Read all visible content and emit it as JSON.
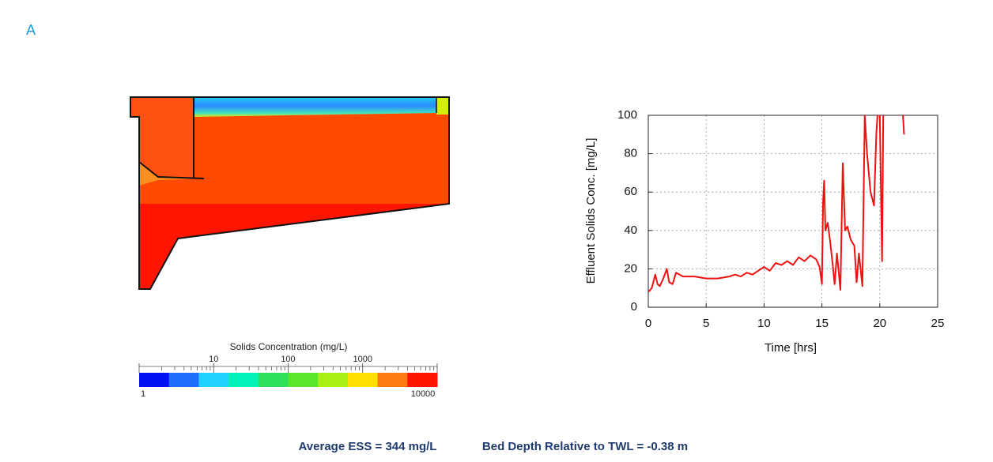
{
  "panel_label": "A",
  "colorbar": {
    "title": "Solids Concentration (mg/L)",
    "lim": [
      1,
      10000
    ],
    "ticks": [
      1,
      10,
      100,
      1000,
      10000
    ],
    "log": true,
    "colors": [
      "#0010f5",
      "#1f6dff",
      "#1fd2ff",
      "#00f2b8",
      "#2ee05a",
      "#5ae62a",
      "#a8f014",
      "#ffe000",
      "#ff7a10",
      "#ff1500"
    ]
  },
  "caption": {
    "ess": "Average ESS = 344 mg/L",
    "bed": "Bed Depth Relative to TWL = -0.38 m"
  },
  "chart_data": {
    "type": "line",
    "x_label": "Time [hrs]",
    "y_label": "Effluent Solids Conc. [mg/L]",
    "color": "#ee1111",
    "grid": true,
    "xlim": [
      0,
      25
    ],
    "xticks": [
      0,
      5,
      10,
      15,
      20,
      25
    ],
    "ylim": [
      0,
      100
    ],
    "yticks": [
      0,
      20,
      40,
      60,
      80,
      100
    ],
    "x": [
      0,
      0.3,
      0.6,
      0.8,
      1.0,
      1.3,
      1.6,
      1.8,
      2.1,
      2.4,
      2.7,
      3,
      4,
      5,
      6,
      7,
      7.5,
      8,
      8.5,
      9,
      9.5,
      10,
      10.5,
      11,
      11.5,
      12,
      12.5,
      13,
      13.5,
      14,
      14.5,
      14.8,
      15,
      15.1,
      15.2,
      15.3,
      15.5,
      15.7,
      15.9,
      16.1,
      16.3,
      16.6,
      16.8,
      17,
      17.2,
      17.5,
      17.8,
      18,
      18.2,
      18.5,
      18.7,
      18.9,
      19.2,
      19.5,
      19.7,
      19.8,
      19.9,
      20,
      20.1,
      20.2,
      20.3,
      21,
      22,
      22.1
    ],
    "values": [
      8,
      10,
      17,
      12,
      11,
      15,
      20,
      13,
      12,
      18,
      17,
      16,
      16,
      15,
      15,
      16,
      17,
      16,
      18,
      17,
      19,
      21,
      19,
      23,
      22,
      24,
      22,
      26,
      24,
      27,
      25,
      21,
      12,
      55,
      66,
      40,
      44,
      35,
      24,
      12,
      28,
      9,
      75,
      40,
      42,
      35,
      32,
      13,
      28,
      11,
      100,
      80,
      60,
      53,
      90,
      100,
      null,
      100,
      60,
      24,
      100,
      null,
      100,
      90
    ]
  }
}
